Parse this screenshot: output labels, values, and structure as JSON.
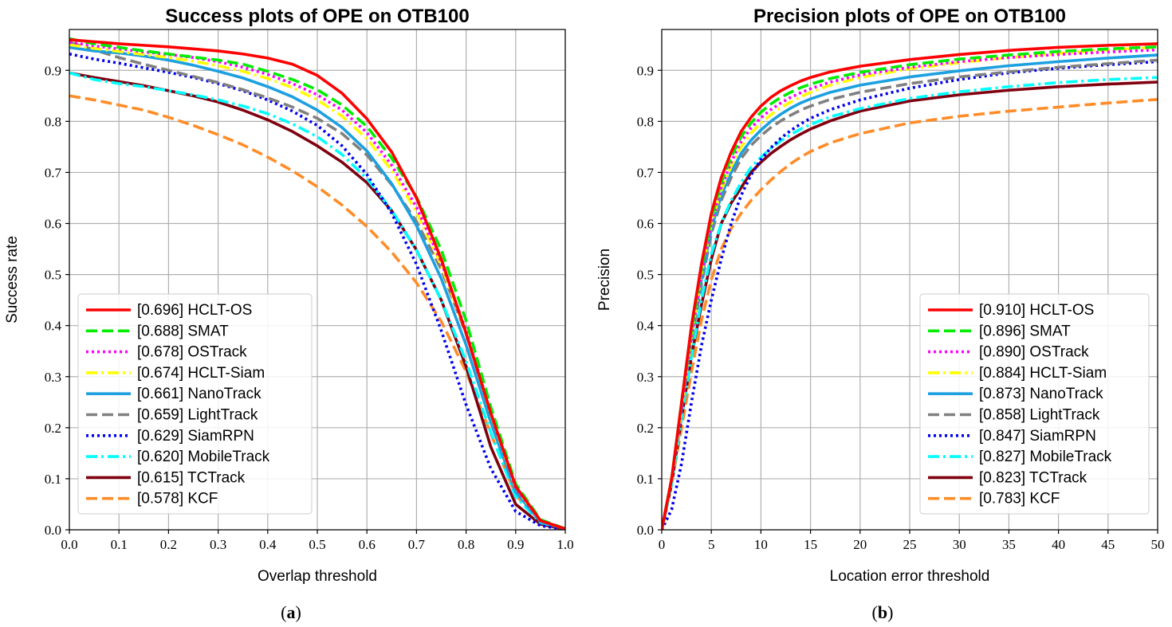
{
  "chart_data": [
    {
      "type": "line",
      "title": "Success plots of OPE on OTB100",
      "xlabel": "Overlap threshold",
      "ylabel": "Success rate",
      "caption": "a",
      "xlim": [
        0,
        1
      ],
      "ylim": [
        0,
        0.98
      ],
      "xticks": [
        0.0,
        0.1,
        0.2,
        0.3,
        0.4,
        0.5,
        0.6,
        0.7,
        0.8,
        0.9,
        1.0
      ],
      "xtick_labels": [
        "0.0",
        "0.1",
        "0.2",
        "0.3",
        "0.4",
        "0.5",
        "0.6",
        "0.7",
        "0.8",
        "0.9",
        "1.0"
      ],
      "yticks": [
        0.0,
        0.1,
        0.2,
        0.3,
        0.4,
        0.5,
        0.6,
        0.7,
        0.8,
        0.9
      ],
      "ytick_labels": [
        "0.0",
        "0.1",
        "0.2",
        "0.3",
        "0.4",
        "0.5",
        "0.6",
        "0.7",
        "0.8",
        "0.9"
      ],
      "grid": true,
      "legend_position": "lower-left",
      "x": [
        0.0,
        0.05,
        0.1,
        0.15,
        0.2,
        0.25,
        0.3,
        0.35,
        0.4,
        0.45,
        0.5,
        0.55,
        0.6,
        0.65,
        0.7,
        0.75,
        0.8,
        0.85,
        0.9,
        0.95,
        1.0
      ],
      "series": [
        {
          "label": "[0.696] HCLT-OS",
          "color": "#ff0000",
          "dash": "solid",
          "y": [
            0.96,
            0.956,
            0.952,
            0.949,
            0.946,
            0.942,
            0.938,
            0.932,
            0.924,
            0.912,
            0.89,
            0.855,
            0.805,
            0.74,
            0.65,
            0.53,
            0.385,
            0.228,
            0.085,
            0.018,
            0.002
          ]
        },
        {
          "label": "[0.688] SMAT",
          "color": "#00ee00",
          "dash": "dashed",
          "y": [
            0.962,
            0.952,
            0.945,
            0.938,
            0.932,
            0.926,
            0.92,
            0.912,
            0.898,
            0.882,
            0.862,
            0.832,
            0.79,
            0.728,
            0.652,
            0.548,
            0.41,
            0.24,
            0.09,
            0.02,
            0.002
          ]
        },
        {
          "label": "[0.678] OSTrack",
          "color": "#ff00ff",
          "dash": "dotted",
          "y": [
            0.955,
            0.948,
            0.942,
            0.936,
            0.931,
            0.925,
            0.917,
            0.906,
            0.892,
            0.874,
            0.852,
            0.822,
            0.778,
            0.714,
            0.632,
            0.524,
            0.39,
            0.228,
            0.082,
            0.018,
            0.002
          ]
        },
        {
          "label": "[0.674] HCLT-Siam",
          "color": "#ffff00",
          "dash": "dashdot",
          "y": [
            0.95,
            0.943,
            0.937,
            0.931,
            0.925,
            0.918,
            0.909,
            0.898,
            0.884,
            0.866,
            0.842,
            0.81,
            0.766,
            0.704,
            0.622,
            0.518,
            0.386,
            0.226,
            0.082,
            0.018,
            0.002
          ]
        },
        {
          "label": "[0.661] NanoTrack",
          "color": "#1ca0e0",
          "dash": "solid",
          "y": [
            0.945,
            0.938,
            0.934,
            0.928,
            0.92,
            0.91,
            0.898,
            0.885,
            0.868,
            0.848,
            0.822,
            0.788,
            0.742,
            0.678,
            0.596,
            0.492,
            0.362,
            0.21,
            0.074,
            0.016,
            0.002
          ]
        },
        {
          "label": "[0.659] LightTrack",
          "color": "#808080",
          "dash": "dashed",
          "y": [
            0.955,
            0.94,
            0.925,
            0.912,
            0.9,
            0.888,
            0.876,
            0.862,
            0.846,
            0.828,
            0.806,
            0.776,
            0.734,
            0.676,
            0.604,
            0.51,
            0.384,
            0.226,
            0.082,
            0.018,
            0.002
          ]
        },
        {
          "label": "[0.629] SiamRPN",
          "color": "#0000ee",
          "dash": "dotted",
          "y": [
            0.932,
            0.922,
            0.914,
            0.905,
            0.896,
            0.886,
            0.874,
            0.86,
            0.842,
            0.82,
            0.792,
            0.752,
            0.696,
            0.62,
            0.52,
            0.39,
            0.245,
            0.12,
            0.036,
            0.008,
            0.001
          ]
        },
        {
          "label": "[0.620] MobileTrack",
          "color": "#00ffff",
          "dash": "dashdot",
          "y": [
            0.895,
            0.882,
            0.874,
            0.868,
            0.86,
            0.852,
            0.842,
            0.83,
            0.815,
            0.795,
            0.77,
            0.735,
            0.688,
            0.626,
            0.548,
            0.45,
            0.33,
            0.19,
            0.065,
            0.014,
            0.002
          ]
        },
        {
          "label": "[0.615] TCTrack",
          "color": "#800010",
          "dash": "solid",
          "y": [
            0.895,
            0.886,
            0.878,
            0.87,
            0.86,
            0.85,
            0.838,
            0.822,
            0.803,
            0.78,
            0.752,
            0.72,
            0.68,
            0.625,
            0.548,
            0.45,
            0.32,
            0.162,
            0.05,
            0.011,
            0.001
          ]
        },
        {
          "label": "[0.578] KCF",
          "color": "#ff8c28",
          "dash": "dashed",
          "y": [
            0.85,
            0.842,
            0.832,
            0.822,
            0.808,
            0.792,
            0.774,
            0.754,
            0.73,
            0.703,
            0.672,
            0.636,
            0.594,
            0.544,
            0.484,
            0.408,
            0.31,
            0.188,
            0.068,
            0.016,
            0.002
          ]
        }
      ]
    },
    {
      "type": "line",
      "title": "Precision plots of OPE on OTB100",
      "xlabel": "Location error threshold",
      "ylabel": "Precision",
      "caption": "b",
      "xlim": [
        0,
        50
      ],
      "ylim": [
        0,
        0.98
      ],
      "xticks": [
        0,
        5,
        10,
        15,
        20,
        25,
        30,
        35,
        40,
        45,
        50
      ],
      "xtick_labels": [
        "0",
        "5",
        "10",
        "15",
        "20",
        "25",
        "30",
        "35",
        "40",
        "45",
        "50"
      ],
      "yticks": [
        0.0,
        0.1,
        0.2,
        0.3,
        0.4,
        0.5,
        0.6,
        0.7,
        0.8,
        0.9
      ],
      "ytick_labels": [
        "0.0",
        "0.1",
        "0.2",
        "0.3",
        "0.4",
        "0.5",
        "0.6",
        "0.7",
        "0.8",
        "0.9"
      ],
      "grid": true,
      "legend_position": "lower-right",
      "x": [
        0,
        1,
        2,
        3,
        4,
        5,
        6,
        7,
        8,
        9,
        10,
        11,
        12,
        13,
        14,
        15,
        17,
        20,
        25,
        30,
        35,
        40,
        45,
        50
      ],
      "series": [
        {
          "label": "[0.910] HCLT-OS",
          "color": "#ff0000",
          "dash": "solid",
          "y": [
            0.0,
            0.1,
            0.25,
            0.4,
            0.52,
            0.62,
            0.69,
            0.74,
            0.78,
            0.808,
            0.83,
            0.847,
            0.86,
            0.87,
            0.879,
            0.886,
            0.897,
            0.908,
            0.921,
            0.931,
            0.939,
            0.945,
            0.949,
            0.952
          ]
        },
        {
          "label": "[0.896] SMAT",
          "color": "#00ee00",
          "dash": "dashed",
          "y": [
            0.0,
            0.1,
            0.25,
            0.39,
            0.51,
            0.61,
            0.68,
            0.73,
            0.77,
            0.797,
            0.818,
            0.834,
            0.847,
            0.857,
            0.866,
            0.873,
            0.884,
            0.896,
            0.911,
            0.922,
            0.93,
            0.937,
            0.942,
            0.946
          ]
        },
        {
          "label": "[0.890] OSTrack",
          "color": "#ff00ff",
          "dash": "dotted",
          "y": [
            0.0,
            0.1,
            0.24,
            0.38,
            0.5,
            0.6,
            0.67,
            0.72,
            0.76,
            0.787,
            0.807,
            0.823,
            0.836,
            0.847,
            0.856,
            0.864,
            0.877,
            0.891,
            0.906,
            0.917,
            0.925,
            0.931,
            0.936,
            0.94
          ]
        },
        {
          "label": "[0.884] HCLT-Siam",
          "color": "#ffff00",
          "dash": "dashdot",
          "y": [
            0.0,
            0.1,
            0.24,
            0.38,
            0.5,
            0.6,
            0.665,
            0.712,
            0.75,
            0.777,
            0.797,
            0.813,
            0.827,
            0.838,
            0.848,
            0.857,
            0.871,
            0.886,
            0.903,
            0.915,
            0.925,
            0.933,
            0.94,
            0.945
          ]
        },
        {
          "label": "[0.873] NanoTrack",
          "color": "#1ca0e0",
          "dash": "solid",
          "y": [
            0.0,
            0.1,
            0.24,
            0.38,
            0.49,
            0.59,
            0.655,
            0.7,
            0.737,
            0.763,
            0.783,
            0.8,
            0.814,
            0.826,
            0.836,
            0.844,
            0.857,
            0.871,
            0.887,
            0.899,
            0.909,
            0.917,
            0.924,
            0.93
          ]
        },
        {
          "label": "[0.858] LightTrack",
          "color": "#808080",
          "dash": "dashed",
          "y": [
            0.0,
            0.1,
            0.24,
            0.37,
            0.48,
            0.58,
            0.645,
            0.69,
            0.727,
            0.753,
            0.772,
            0.788,
            0.801,
            0.812,
            0.822,
            0.83,
            0.843,
            0.857,
            0.874,
            0.887,
            0.897,
            0.906,
            0.913,
            0.92
          ]
        },
        {
          "label": "[0.847] SiamRPN",
          "color": "#0000ee",
          "dash": "dotted",
          "y": [
            0.0,
            0.04,
            0.13,
            0.25,
            0.36,
            0.45,
            0.53,
            0.6,
            0.655,
            0.695,
            0.725,
            0.748,
            0.767,
            0.782,
            0.795,
            0.806,
            0.823,
            0.842,
            0.865,
            0.882,
            0.895,
            0.904,
            0.911,
            0.917
          ]
        },
        {
          "label": "[0.827] MobileTrack",
          "color": "#00ffff",
          "dash": "dashdot",
          "y": [
            0.0,
            0.09,
            0.22,
            0.34,
            0.45,
            0.54,
            0.6,
            0.645,
            0.68,
            0.71,
            0.73,
            0.747,
            0.762,
            0.774,
            0.785,
            0.794,
            0.809,
            0.825,
            0.845,
            0.858,
            0.868,
            0.876,
            0.882,
            0.886
          ]
        },
        {
          "label": "[0.823] TCTrack",
          "color": "#800010",
          "dash": "solid",
          "y": [
            0.0,
            0.09,
            0.22,
            0.34,
            0.44,
            0.53,
            0.6,
            0.64,
            0.67,
            0.7,
            0.72,
            0.737,
            0.751,
            0.764,
            0.775,
            0.785,
            0.801,
            0.82,
            0.84,
            0.852,
            0.861,
            0.868,
            0.873,
            0.877
          ]
        },
        {
          "label": "[0.783] KCF",
          "color": "#ff8c28",
          "dash": "dashed",
          "y": [
            0.0,
            0.09,
            0.2,
            0.31,
            0.41,
            0.49,
            0.55,
            0.59,
            0.62,
            0.645,
            0.666,
            0.685,
            0.702,
            0.717,
            0.73,
            0.741,
            0.758,
            0.776,
            0.797,
            0.81,
            0.82,
            0.828,
            0.836,
            0.843
          ]
        }
      ]
    }
  ]
}
